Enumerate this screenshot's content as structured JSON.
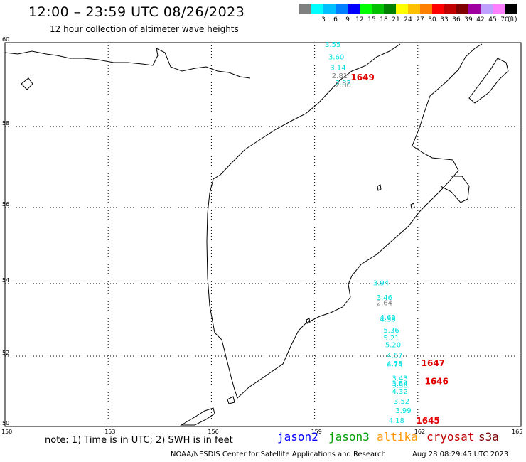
{
  "header": {
    "title": "12:00 – 23:59 UTC 08/26/2023",
    "subtitle": "12 hour collection of altimeter wave heights"
  },
  "color_scale": {
    "units": "(ft)",
    "swatches": [
      {
        "color": "#808080",
        "label": ""
      },
      {
        "color": "#00ffff",
        "label": "3"
      },
      {
        "color": "#00c0ff",
        "label": "6"
      },
      {
        "color": "#0080ff",
        "label": "9"
      },
      {
        "color": "#0000ff",
        "label": "12"
      },
      {
        "color": "#00ff00",
        "label": "15"
      },
      {
        "color": "#00c000",
        "label": "18"
      },
      {
        "color": "#008000",
        "label": "21"
      },
      {
        "color": "#ffff00",
        "label": "24"
      },
      {
        "color": "#ffc000",
        "label": "27"
      },
      {
        "color": "#ff8000",
        "label": "30"
      },
      {
        "color": "#ff0000",
        "label": "33"
      },
      {
        "color": "#c00000",
        "label": "36"
      },
      {
        "color": "#800000",
        "label": "39"
      },
      {
        "color": "#a000a0",
        "label": "42"
      },
      {
        "color": "#c0a0ff",
        "label": "45"
      },
      {
        "color": "#ff80ff",
        "label": "70"
      },
      {
        "color": "#000000",
        "label": ""
      }
    ]
  },
  "map": {
    "lat_labels": [
      "60",
      "58",
      "56",
      "54",
      "52",
      "50"
    ],
    "lon_labels": [
      "150",
      "153",
      "156",
      "159",
      "162",
      "165"
    ],
    "measurements": [
      {
        "text": "3.55",
        "lon": 159.3,
        "lat": 59.9,
        "color": "#00e0e0"
      },
      {
        "text": "3.60",
        "lon": 159.4,
        "lat": 59.6,
        "color": "#00e0e0"
      },
      {
        "text": "3.14",
        "lon": 159.45,
        "lat": 59.35,
        "color": "#00e0e0"
      },
      {
        "text": "2.81",
        "lon": 159.5,
        "lat": 59.15,
        "color": "#808080"
      },
      {
        "text": "2.82",
        "lon": 159.6,
        "lat": 58.98,
        "color": "#00e0e0"
      },
      {
        "text": "2.80",
        "lon": 159.6,
        "lat": 58.93,
        "color": "#808080"
      },
      {
        "text": "3.94",
        "lon": 160.7,
        "lat": 53.95,
        "color": "#00e0e0"
      },
      {
        "text": "3.46",
        "lon": 160.8,
        "lat": 53.55,
        "color": "#00e0e0"
      },
      {
        "text": "2.64",
        "lon": 160.8,
        "lat": 53.4,
        "color": "#808080"
      },
      {
        "text": "4.63",
        "lon": 160.9,
        "lat": 53.0,
        "color": "#00e0e0"
      },
      {
        "text": "4.38",
        "lon": 160.9,
        "lat": 52.95,
        "color": "#00e0e0"
      },
      {
        "text": "5.36",
        "lon": 161.0,
        "lat": 52.65,
        "color": "#00e0e0"
      },
      {
        "text": "5.21",
        "lon": 161.0,
        "lat": 52.43,
        "color": "#00e0e0"
      },
      {
        "text": "5.20",
        "lon": 161.05,
        "lat": 52.25,
        "color": "#00e0e0"
      },
      {
        "text": "4.57",
        "lon": 161.1,
        "lat": 51.95,
        "color": "#00e0e0"
      },
      {
        "text": "4.78",
        "lon": 161.1,
        "lat": 51.72,
        "color": "#00e0e0"
      },
      {
        "text": "4.73",
        "lon": 161.1,
        "lat": 51.68,
        "color": "#00e0e0"
      },
      {
        "text": "3.43",
        "lon": 161.25,
        "lat": 51.3,
        "color": "#00e0e0"
      },
      {
        "text": "3.54",
        "lon": 161.25,
        "lat": 51.15,
        "color": "#00e0e0"
      },
      {
        "text": "3.56",
        "lon": 161.25,
        "lat": 51.1,
        "color": "#00e0e0"
      },
      {
        "text": "4.32",
        "lon": 161.25,
        "lat": 50.93,
        "color": "#00e0e0"
      },
      {
        "text": "3.52",
        "lon": 161.3,
        "lat": 50.65,
        "color": "#00e0e0"
      },
      {
        "text": "3.99",
        "lon": 161.35,
        "lat": 50.38,
        "color": "#00e0e0"
      },
      {
        "text": "4.18",
        "lon": 161.15,
        "lat": 50.1,
        "color": "#00e0e0"
      }
    ],
    "pass_times": [
      {
        "text": "1649",
        "lon": 160.05,
        "lat": 59.1
      },
      {
        "text": "1647",
        "lon": 162.1,
        "lat": 51.72
      },
      {
        "text": "1646",
        "lon": 162.2,
        "lat": 51.2
      },
      {
        "text": "1645",
        "lon": 161.95,
        "lat": 50.08
      }
    ]
  },
  "footer": {
    "note": "note: 1) Time is in UTC; 2) SWH is in feet",
    "satellites": [
      {
        "name": "jason2",
        "color": "#0000ff"
      },
      {
        "name": "jason3",
        "color": "#00a000"
      },
      {
        "name": "altika",
        "color": "#ff9900"
      },
      {
        "name": "cryosat",
        "color": "#c00000"
      },
      {
        "name": "s3a",
        "color": "#800000"
      }
    ],
    "credit": "NOAA/NESDIS Center for Satellite Applications and Research",
    "timestamp": "Aug 28 08:29:45 UTC 2023"
  }
}
